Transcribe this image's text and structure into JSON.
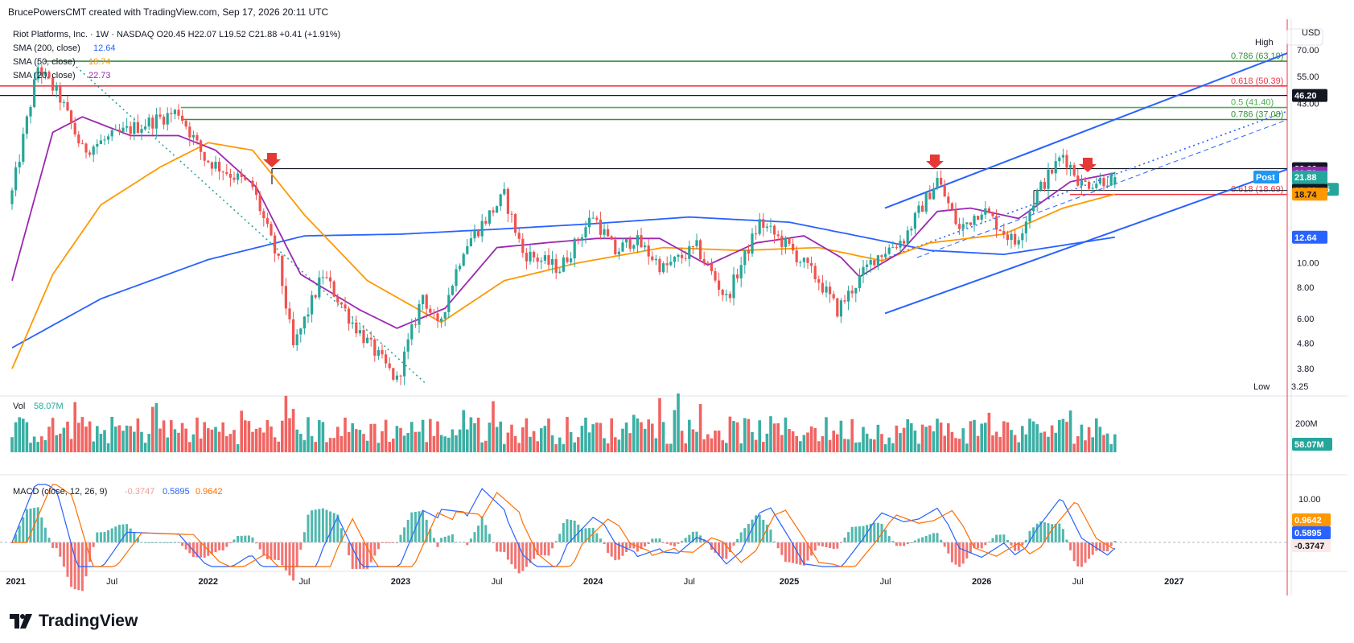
{
  "header": {
    "attribution": "BrucePowersCMT created with TradingView.com, Sep 17, 2026 20:11 UTC"
  },
  "legend": {
    "symbol": "Riot Platforms, Inc. · 1W · NASDAQ",
    "ohlc": "O20.45  H22.07  L19.52  C21.88  +0.41 (+1.91%)",
    "sma200_label": "SMA (200, close)",
    "sma200_value": "12.64",
    "sma50_label": "SMA (50, close)",
    "sma50_value": "18.74",
    "sma20_label": "SMA (20, close)",
    "sma20_value": "22.73",
    "vol_label": "Vol",
    "vol_value": "58.07M",
    "macd_label": "MACD (close, 12, 26, 9)",
    "macd_hist": "-0.3747",
    "macd_line": "0.5895",
    "macd_signal": "0.9642"
  },
  "currency": "USD",
  "brand": "TradingView",
  "colors": {
    "up": "#26a69a",
    "down": "#ef5350",
    "sma20": "#9c27b0",
    "sma50": "#ff9800",
    "sma200": "#2962ff",
    "channel": "#2962ff",
    "fib_red": "#f23645",
    "fib_green": "#4caf50",
    "fib_dark_green": "#388e3c"
  },
  "chart_data": {
    "type": "candlestick",
    "title": "Riot Platforms, Inc. · 1W · NASDAQ",
    "y_scale": "log",
    "x_labels": [
      "2021",
      "Jul",
      "2022",
      "Jul",
      "2023",
      "Jul",
      "2024",
      "Jul",
      "2025",
      "Jul",
      "2026",
      "Jul",
      "2027"
    ],
    "y_ticks": [
      "70.00",
      "55.00",
      "43.00",
      "10.00",
      "8.00",
      "6.00",
      "4.80",
      "3.80"
    ],
    "last": {
      "open": 20.45,
      "high": 22.07,
      "low": 19.52,
      "close": 21.88,
      "change": 0.41,
      "change_pct": 1.91
    },
    "close_anchors": [
      {
        "d": "2020-12-28",
        "c": 19
      },
      {
        "d": "2021-02-15",
        "c": 60
      },
      {
        "d": "2021-03-29",
        "c": 45
      },
      {
        "d": "2021-05-10",
        "c": 28
      },
      {
        "d": "2021-08-09",
        "c": 34
      },
      {
        "d": "2021-11-08",
        "c": 40
      },
      {
        "d": "2021-12-27",
        "c": 26
      },
      {
        "d": "2022-03-28",
        "c": 20
      },
      {
        "d": "2022-05-16",
        "c": 10
      },
      {
        "d": "2022-06-13",
        "c": 4.6
      },
      {
        "d": "2022-08-08",
        "c": 9
      },
      {
        "d": "2022-10-03",
        "c": 5.8
      },
      {
        "d": "2022-12-26",
        "c": 3.4
      },
      {
        "d": "2023-02-13",
        "c": 7.5
      },
      {
        "d": "2023-03-13",
        "c": 5.5
      },
      {
        "d": "2023-05-01",
        "c": 11.5
      },
      {
        "d": "2023-07-17",
        "c": 18.5
      },
      {
        "d": "2023-08-21",
        "c": 11
      },
      {
        "d": "2023-10-30",
        "c": 9.5
      },
      {
        "d": "2024-01-01",
        "c": 15.5
      },
      {
        "d": "2024-02-12",
        "c": 11
      },
      {
        "d": "2024-03-18",
        "c": 12.5
      },
      {
        "d": "2024-05-13",
        "c": 9.5
      },
      {
        "d": "2024-07-15",
        "c": 11.5
      },
      {
        "d": "2024-09-09",
        "c": 7.2
      },
      {
        "d": "2024-11-11",
        "c": 14.5
      },
      {
        "d": "2025-01-06",
        "c": 11.5
      },
      {
        "d": "2025-03-03",
        "c": 8.5
      },
      {
        "d": "2025-04-07",
        "c": 6.5
      },
      {
        "d": "2025-06-16",
        "c": 10.5
      },
      {
        "d": "2025-08-11",
        "c": 12.5
      },
      {
        "d": "2025-10-13",
        "c": 21.5
      },
      {
        "d": "2025-11-24",
        "c": 13.5
      },
      {
        "d": "2026-01-05",
        "c": 16.5
      },
      {
        "d": "2026-03-09",
        "c": 12
      },
      {
        "d": "2026-04-20",
        "c": 19
      },
      {
        "d": "2026-06-08",
        "c": 27
      },
      {
        "d": "2026-07-13",
        "c": 20.5
      },
      {
        "d": "2026-09-14",
        "c": 21.88
      }
    ],
    "sma20": [
      {
        "d": "2020-12-28",
        "v": 8.5
      },
      {
        "d": "2021-03-15",
        "v": 33
      },
      {
        "d": "2021-05-10",
        "v": 38
      },
      {
        "d": "2021-08-09",
        "v": 32
      },
      {
        "d": "2021-11-08",
        "v": 32
      },
      {
        "d": "2022-01-17",
        "v": 28
      },
      {
        "d": "2022-04-04",
        "v": 20
      },
      {
        "d": "2022-06-27",
        "v": 9
      },
      {
        "d": "2022-10-17",
        "v": 6.5
      },
      {
        "d": "2022-12-26",
        "v": 5.5
      },
      {
        "d": "2023-03-27",
        "v": 6.6
      },
      {
        "d": "2023-07-03",
        "v": 11.5
      },
      {
        "d": "2023-10-02",
        "v": 12
      },
      {
        "d": "2024-01-08",
        "v": 12.5
      },
      {
        "d": "2024-05-06",
        "v": 12.5
      },
      {
        "d": "2024-08-05",
        "v": 9.8
      },
      {
        "d": "2024-11-04",
        "v": 12
      },
      {
        "d": "2025-02-03",
        "v": 12.8
      },
      {
        "d": "2025-04-14",
        "v": 10.5
      },
      {
        "d": "2025-05-19",
        "v": 8.8
      },
      {
        "d": "2025-08-04",
        "v": 11
      },
      {
        "d": "2025-10-13",
        "v": 16
      },
      {
        "d": "2025-12-15",
        "v": 16.5
      },
      {
        "d": "2026-03-16",
        "v": 15
      },
      {
        "d": "2026-06-22",
        "v": 21
      },
      {
        "d": "2026-09-14",
        "v": 22.73
      }
    ],
    "sma50": [
      {
        "d": "2020-12-28",
        "v": 3.8
      },
      {
        "d": "2021-03-15",
        "v": 9
      },
      {
        "d": "2021-06-14",
        "v": 17
      },
      {
        "d": "2021-10-04",
        "v": 24
      },
      {
        "d": "2022-01-03",
        "v": 30
      },
      {
        "d": "2022-03-28",
        "v": 28
      },
      {
        "d": "2022-07-04",
        "v": 15.5
      },
      {
        "d": "2022-10-31",
        "v": 8.5
      },
      {
        "d": "2023-03-20",
        "v": 5.8
      },
      {
        "d": "2023-07-17",
        "v": 8.5
      },
      {
        "d": "2023-12-04",
        "v": 10
      },
      {
        "d": "2024-05-13",
        "v": 11.5
      },
      {
        "d": "2024-10-07",
        "v": 11.2
      },
      {
        "d": "2025-03-03",
        "v": 11.5
      },
      {
        "d": "2025-06-30",
        "v": 10.2
      },
      {
        "d": "2025-09-29",
        "v": 12
      },
      {
        "d": "2026-02-16",
        "v": 13
      },
      {
        "d": "2026-06-08",
        "v": 16.5
      },
      {
        "d": "2026-09-14",
        "v": 18.74
      }
    ],
    "sma200": [
      {
        "d": "2020-12-28",
        "v": 4.6
      },
      {
        "d": "2021-06-14",
        "v": 7.2
      },
      {
        "d": "2022-01-03",
        "v": 10.3
      },
      {
        "d": "2022-07-04",
        "v": 12.8
      },
      {
        "d": "2023-01-02",
        "v": 13
      },
      {
        "d": "2023-07-03",
        "v": 13.6
      },
      {
        "d": "2024-01-01",
        "v": 14.3
      },
      {
        "d": "2024-07-01",
        "v": 15.2
      },
      {
        "d": "2025-01-06",
        "v": 14.5
      },
      {
        "d": "2025-04-21",
        "v": 13.1
      },
      {
        "d": "2025-09-29",
        "v": 11.2
      },
      {
        "d": "2026-02-16",
        "v": 10.8
      },
      {
        "d": "2026-09-14",
        "v": 12.64
      }
    ],
    "volume_last": "58.07M",
    "volume_tick": "200M",
    "macd": {
      "line": 0.5895,
      "signal": 0.9642,
      "histogram": -0.3747,
      "axis_tick": "10.00"
    },
    "fib_levels": [
      {
        "label": "0.786 (63.19)",
        "value": 63.19,
        "color": "#388e3c"
      },
      {
        "label": "0.618 (50.39)",
        "value": 50.39,
        "color": "#f23645"
      },
      {
        "label": "0.5 (41.40)",
        "value": 41.4,
        "color": "#4caf50"
      },
      {
        "label": "0.786 (37.08)",
        "value": 37.08,
        "color": "#388e3c"
      },
      {
        "label": "0.618 (18.69)",
        "value": 18.69,
        "color": "#f23645"
      }
    ],
    "horizontal_lines": [
      46.2,
      23.66
    ],
    "price_badges": [
      {
        "text": "High",
        "kind": "plain"
      },
      {
        "text": "46.20",
        "value": 46.2,
        "bg": "#131722",
        "fg": "#ffffff"
      },
      {
        "text": "23.66",
        "value": 23.66,
        "bg": "#131722",
        "fg": "#ffffff"
      },
      {
        "text": "22.73",
        "value": 22.73,
        "bg": "#9c27b0",
        "fg": "#ffffff"
      },
      {
        "text": "Post",
        "value": 21.92,
        "bg": "#2196f3",
        "fg": "#ffffff",
        "side": "left"
      },
      {
        "text": "21.92",
        "value": 21.92,
        "bg": "#2196f3",
        "fg": "#ffffff"
      },
      {
        "text": "21.88",
        "value": 21.88,
        "bg": "#26a69a",
        "fg": "#ffffff"
      },
      {
        "text": "23:48:05",
        "value": 20.5,
        "bg": "#26a69a",
        "fg": "#ffffff"
      },
      {
        "text": "19.39",
        "value": 19.39,
        "bg": "#131722",
        "fg": "#ffffff"
      },
      {
        "text": "18.74",
        "value": 18.74,
        "bg": "#ff9800",
        "fg": "#131722"
      },
      {
        "text": "12.64",
        "value": 12.64,
        "bg": "#2962ff",
        "fg": "#ffffff"
      },
      {
        "text": "Low",
        "kind": "plain"
      },
      {
        "text": "3.25",
        "kind": "plain"
      }
    ]
  }
}
